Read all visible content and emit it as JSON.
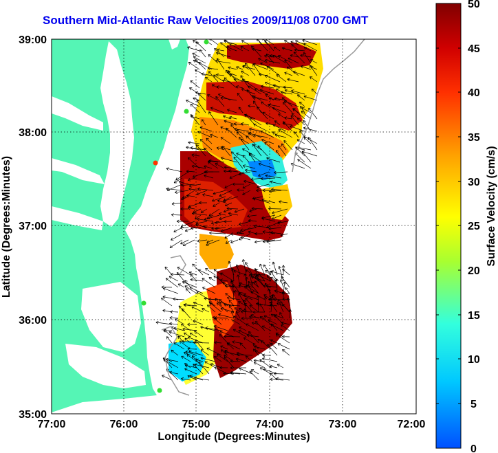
{
  "title": "Southern Mid-Atlantic Raw Velocities 2009/11/08 0700 GMT",
  "x_axis": {
    "label": "Longitude (Degrees:Minutes)",
    "ticks": [
      "77:00",
      "76:00",
      "75:00",
      "74:00",
      "73:00",
      "72:00"
    ]
  },
  "y_axis": {
    "label": "Latitude (Degrees:Minutes)",
    "ticks": [
      "39:00",
      "38:00",
      "37:00",
      "36:00",
      "35:00"
    ]
  },
  "colorbar": {
    "label": "Surface Velocity (cm/s)",
    "ticks": [
      "50",
      "45",
      "40",
      "35",
      "30",
      "25",
      "20",
      "15",
      "10",
      "5",
      "0"
    ],
    "colors": [
      "#0033ff",
      "#00ccff",
      "#33ffcc",
      "#aaff33",
      "#ffff00",
      "#ffaa00",
      "#ff4400",
      "#dd0000",
      "#880000"
    ]
  },
  "colors": {
    "title": "#0000ee",
    "land": "#55f5b5",
    "station": "#33dd33",
    "station_alert": "#ff3300",
    "arrows": "#000000"
  }
}
